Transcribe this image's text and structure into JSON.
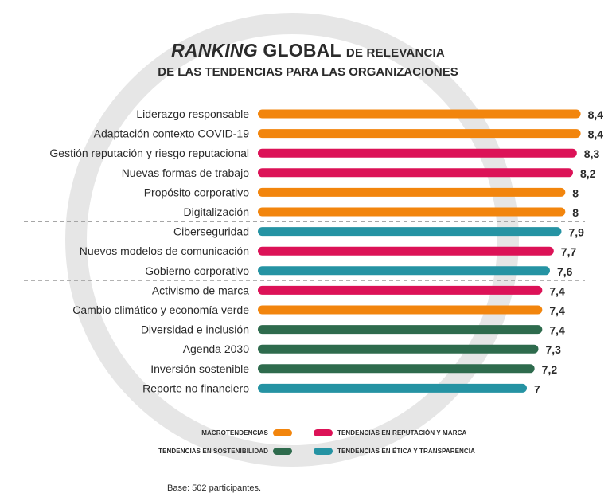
{
  "title": {
    "emphasis": "RANKING",
    "main": "GLOBAL",
    "rest": "DE RELEVANCIA",
    "line2": "DE LAS TENDENCIAS PARA LAS ORGANIZACIONES"
  },
  "colors": {
    "macro": "#f2850d",
    "reputacion": "#dc1257",
    "sostenibilidad": "#2e6b4d",
    "etica": "#2593a3"
  },
  "chart_data": {
    "type": "bar",
    "orientation": "horizontal",
    "xlim": [
      0,
      8.4
    ],
    "categories": [
      "Liderazgo responsable",
      "Adaptación contexto COVID-19",
      "Gestión reputación y riesgo reputacional",
      "Nuevas formas de trabajo",
      "Propósito corporativo",
      "Digitalización",
      "Ciberseguridad",
      "Nuevos modelos de comunicación",
      "Gobierno corporativo",
      "Activismo de marca",
      "Cambio climático y economía verde",
      "Diversidad e inclusión",
      "Agenda 2030",
      "Inversión sostenible",
      "Reporte no financiero"
    ],
    "values": [
      8.4,
      8.4,
      8.3,
      8.2,
      8,
      8,
      7.9,
      7.7,
      7.6,
      7.4,
      7.4,
      7.4,
      7.3,
      7.2,
      7
    ],
    "value_labels": [
      "8,4",
      "8,4",
      "8,3",
      "8,2",
      "8",
      "8",
      "7,9",
      "7,7",
      "7,6",
      "7,4",
      "7,4",
      "7,4",
      "7,3",
      "7,2",
      "7"
    ],
    "groups": [
      "macro",
      "macro",
      "reputacion",
      "reputacion",
      "macro",
      "macro",
      "etica",
      "reputacion",
      "etica",
      "reputacion",
      "macro",
      "sostenibilidad",
      "sostenibilidad",
      "sostenibilidad",
      "etica"
    ],
    "separators_after": [
      5,
      8
    ]
  },
  "legend": [
    {
      "key": "macro",
      "label": "MACROTENDENCIAS"
    },
    {
      "key": "reputacion",
      "label": "TENDENCIAS EN REPUTACIÓN Y MARCA"
    },
    {
      "key": "sostenibilidad",
      "label": "TENDENCIAS EN SOSTENIBILIDAD"
    },
    {
      "key": "etica",
      "label": "TENDENCIAS EN ÉTICA Y TRANSPARENCIA"
    }
  ],
  "note": "Base: 502 participantes."
}
